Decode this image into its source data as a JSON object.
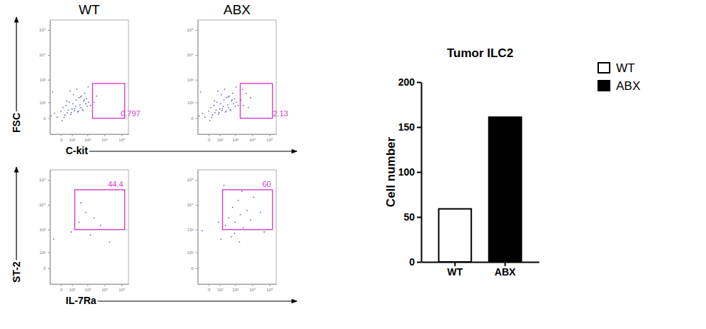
{
  "chart_data": [
    {
      "type": "scatter",
      "title": "WT",
      "xlabel": "C-kit",
      "ylabel": "FSC",
      "log": true,
      "xlim": [
        -100,
        250000
      ],
      "ylim": [
        -100,
        250000
      ],
      "xticks": [
        0,
        {
          "value": 100,
          "label": "10²"
        },
        {
          "value": 1000,
          "label": "10³"
        },
        {
          "value": 10000,
          "label": "10⁴"
        },
        {
          "value": 100000,
          "label": "10⁵"
        }
      ],
      "yticks": [
        0,
        {
          "value": 100,
          "label": "10²"
        },
        {
          "value": 1000,
          "label": "10³"
        },
        {
          "value": 10000,
          "label": "10⁴"
        },
        {
          "value": 100000,
          "label": "10⁵"
        }
      ],
      "x": [
        -80,
        -40,
        -20,
        0,
        10,
        20,
        30,
        40,
        50,
        60,
        80,
        100,
        120,
        150,
        180,
        200,
        250,
        300,
        350,
        400,
        450,
        500,
        600,
        700,
        800,
        900,
        1000,
        1200,
        1500,
        -60,
        15,
        35,
        70,
        90,
        130,
        160,
        220,
        280,
        380,
        550,
        650,
        2500,
        3500,
        1100,
        5
      ],
      "y": [
        7,
        17,
        3,
        27,
        50,
        10,
        67,
        20,
        33,
        100,
        13,
        40,
        83,
        30,
        60,
        133,
        23,
        167,
        73,
        50,
        200,
        37,
        117,
        267,
        83,
        150,
        60,
        100,
        67,
        300,
        2,
        117,
        333,
        20,
        233,
        43,
        400,
        27,
        183,
        30,
        133,
        100,
        200,
        500,
        -7
      ],
      "gate": {
        "x0": 2000,
        "x1": 150000,
        "y0": 0,
        "y1": 700,
        "percent": 0.797
      }
    },
    {
      "type": "scatter",
      "title": "ABX",
      "log": true,
      "xlim": [
        -100,
        250000
      ],
      "ylim": [
        -100,
        250000
      ],
      "xticks": [
        0,
        {
          "value": 100,
          "label": "10²"
        },
        {
          "value": 1000,
          "label": "10³"
        },
        {
          "value": 10000,
          "label": "10⁴"
        },
        {
          "value": 100000,
          "label": "10⁵"
        }
      ],
      "yticks": [
        0,
        {
          "value": 100,
          "label": "10²"
        },
        {
          "value": 1000,
          "label": "10³"
        },
        {
          "value": 10000,
          "label": "10⁴"
        },
        {
          "value": 100000,
          "label": "10⁵"
        }
      ],
      "x": [
        -80,
        -40,
        -20,
        0,
        10,
        20,
        30,
        40,
        50,
        60,
        80,
        100,
        120,
        150,
        180,
        200,
        250,
        300,
        350,
        400,
        450,
        500,
        600,
        700,
        800,
        900,
        1000,
        1200,
        1500,
        -60,
        15,
        35,
        70,
        90,
        130,
        160,
        220,
        280,
        380,
        550,
        650,
        2200,
        3000,
        4500,
        6000,
        8000,
        2800,
        1100,
        5
      ],
      "y": [
        7,
        17,
        3,
        27,
        50,
        10,
        67,
        20,
        33,
        100,
        13,
        40,
        83,
        30,
        60,
        133,
        23,
        167,
        73,
        50,
        200,
        37,
        117,
        267,
        83,
        150,
        60,
        100,
        67,
        300,
        2,
        117,
        333,
        20,
        233,
        43,
        400,
        27,
        183,
        30,
        133,
        133,
        67,
        267,
        50,
        167,
        400,
        500,
        -7
      ],
      "gate": {
        "x0": 2000,
        "x1": 150000,
        "y0": 0,
        "y1": 700,
        "percent": 2.13
      }
    },
    {
      "type": "scatter",
      "xlabel": "IL-7Ra",
      "ylabel": "ST-2",
      "log": true,
      "xlim": [
        -100,
        250000
      ],
      "ylim": [
        -100,
        250000
      ],
      "xticks": [
        0,
        {
          "value": 100,
          "label": "10²"
        },
        {
          "value": 1000,
          "label": "10³"
        },
        {
          "value": 10000,
          "label": "10⁴"
        },
        {
          "value": 100000,
          "label": "10⁵"
        }
      ],
      "yticks": [
        0,
        {
          "value": 100,
          "label": "10²"
        },
        {
          "value": 1000,
          "label": "10³"
        },
        {
          "value": 10000,
          "label": "10⁴"
        },
        {
          "value": 100000,
          "label": "10⁵"
        }
      ],
      "x": [
        300,
        800,
        2500,
        6000,
        1500,
        90,
        -50,
        400,
        20000
      ],
      "y": [
        2000,
        5000,
        3000,
        1500,
        600,
        800,
        400,
        12000,
        300
      ],
      "gate": {
        "x0": 160,
        "x1": 150000,
        "y0": 1000,
        "y1": 40000,
        "percent": 44.4
      }
    },
    {
      "type": "scatter",
      "log": true,
      "xlim": [
        -100,
        250000
      ],
      "ylim": [
        -100,
        250000
      ],
      "xticks": [
        0,
        {
          "value": 100,
          "label": "10²"
        },
        {
          "value": 1000,
          "label": "10³"
        },
        {
          "value": 10000,
          "label": "10⁴"
        },
        {
          "value": 100000,
          "label": "10⁵"
        }
      ],
      "yticks": [
        0,
        {
          "value": 100,
          "label": "10²"
        },
        {
          "value": 1000,
          "label": "10³"
        },
        {
          "value": 10000,
          "label": "10⁴"
        },
        {
          "value": 100000,
          "label": "10⁵"
        }
      ],
      "x": [
        250,
        400,
        700,
        1000,
        1500,
        2000,
        3000,
        5000,
        8000,
        12000,
        600,
        900,
        1800,
        30000,
        -40,
        80,
        120,
        50000,
        2500,
        200
      ],
      "y": [
        1500,
        3000,
        8000,
        2000,
        15000,
        4000,
        1200,
        6000,
        2500,
        20000,
        500,
        700,
        300,
        5000,
        900,
        2000,
        400,
        800,
        35000,
        60000
      ],
      "gate": {
        "x0": 160,
        "x1": 150000,
        "y0": 1000,
        "y1": 40000,
        "percent": 60
      }
    },
    {
      "type": "bar",
      "title": "Tumor ILC2",
      "ylabel": "Cell number",
      "categories": [
        "WT",
        "ABX"
      ],
      "series": [
        {
          "name": "WT",
          "color": "#ffffff",
          "values": [
            59,
            null
          ]
        },
        {
          "name": "ABX",
          "color": "#000000",
          "values": [
            null,
            161
          ]
        }
      ],
      "ylim": [
        0,
        200
      ],
      "yticks": [
        0,
        50,
        100,
        150,
        200
      ],
      "legend": "right",
      "grid": false
    }
  ]
}
